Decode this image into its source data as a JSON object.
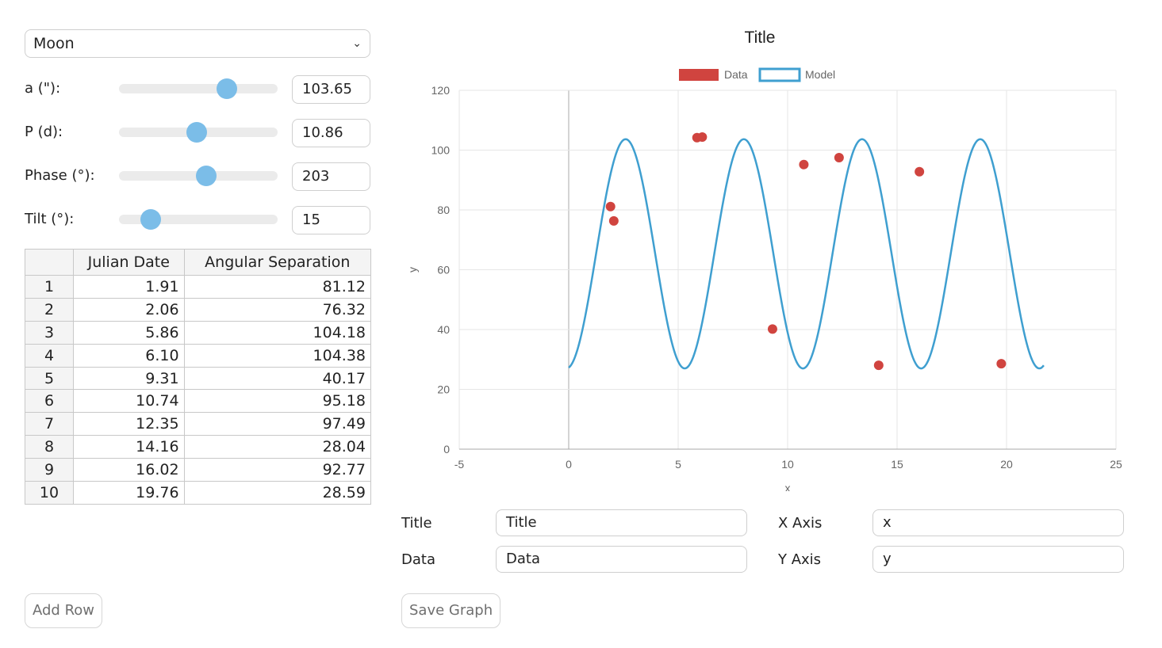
{
  "controls": {
    "body_select": "Moon",
    "a": {
      "label": "a (\"):",
      "value": "103.65",
      "slider_fraction": 0.68
    },
    "P": {
      "label": "P (d):",
      "value": "10.86",
      "slider_fraction": 0.49
    },
    "phase": {
      "label": "Phase (°):",
      "value": "203",
      "slider_fraction": 0.55
    },
    "tilt": {
      "label": "Tilt (°):",
      "value": "15",
      "slider_fraction": 0.2
    }
  },
  "table": {
    "headers": [
      "",
      "Julian Date",
      "Angular Separation"
    ],
    "rows": [
      [
        "1",
        "1.91",
        "81.12"
      ],
      [
        "2",
        "2.06",
        "76.32"
      ],
      [
        "3",
        "5.86",
        "104.18"
      ],
      [
        "4",
        "6.10",
        "104.38"
      ],
      [
        "5",
        "9.31",
        "40.17"
      ],
      [
        "6",
        "10.74",
        "95.18"
      ],
      [
        "7",
        "12.35",
        "97.49"
      ],
      [
        "8",
        "14.16",
        "28.04"
      ],
      [
        "9",
        "16.02",
        "92.77"
      ],
      [
        "10",
        "19.76",
        "28.59"
      ]
    ]
  },
  "buttons": {
    "add_row": "Add Row",
    "save_graph": "Save Graph"
  },
  "form": {
    "title_label": "Title",
    "title_value": "Title",
    "data_label": "Data",
    "data_value": "Data",
    "xaxis_label": "X Axis",
    "xaxis_value": "x",
    "yaxis_label": "Y Axis",
    "yaxis_value": "y"
  },
  "chart_data": {
    "type": "scatter",
    "title": "Title",
    "xlabel": "x",
    "ylabel": "y",
    "xlim": [
      -5,
      25
    ],
    "ylim": [
      0,
      120
    ],
    "xticks": [
      "-5",
      "0",
      "5",
      "10",
      "15",
      "20",
      "25"
    ],
    "yticks": [
      "0",
      "20",
      "40",
      "60",
      "80",
      "100",
      "120"
    ],
    "grid": true,
    "legend_position": "top",
    "series": [
      {
        "name": "Data",
        "type": "scatter",
        "color": "#d0443f",
        "x": [
          1.91,
          2.06,
          5.86,
          6.1,
          9.31,
          10.74,
          12.35,
          14.16,
          16.02,
          19.76
        ],
        "y": [
          81.12,
          76.32,
          104.18,
          104.38,
          40.17,
          95.18,
          97.49,
          28.04,
          92.77,
          28.59
        ]
      },
      {
        "name": "Model",
        "type": "line",
        "color": "#3f9fd0",
        "x_range": [
          0,
          21.7
        ],
        "peaks_x": [
          2.6,
          8.0,
          13.4,
          18.8
        ],
        "troughs_x": [
          5.3,
          10.7,
          16.1,
          21.5
        ],
        "y_max": 103.65,
        "y_min": 27
      }
    ]
  }
}
